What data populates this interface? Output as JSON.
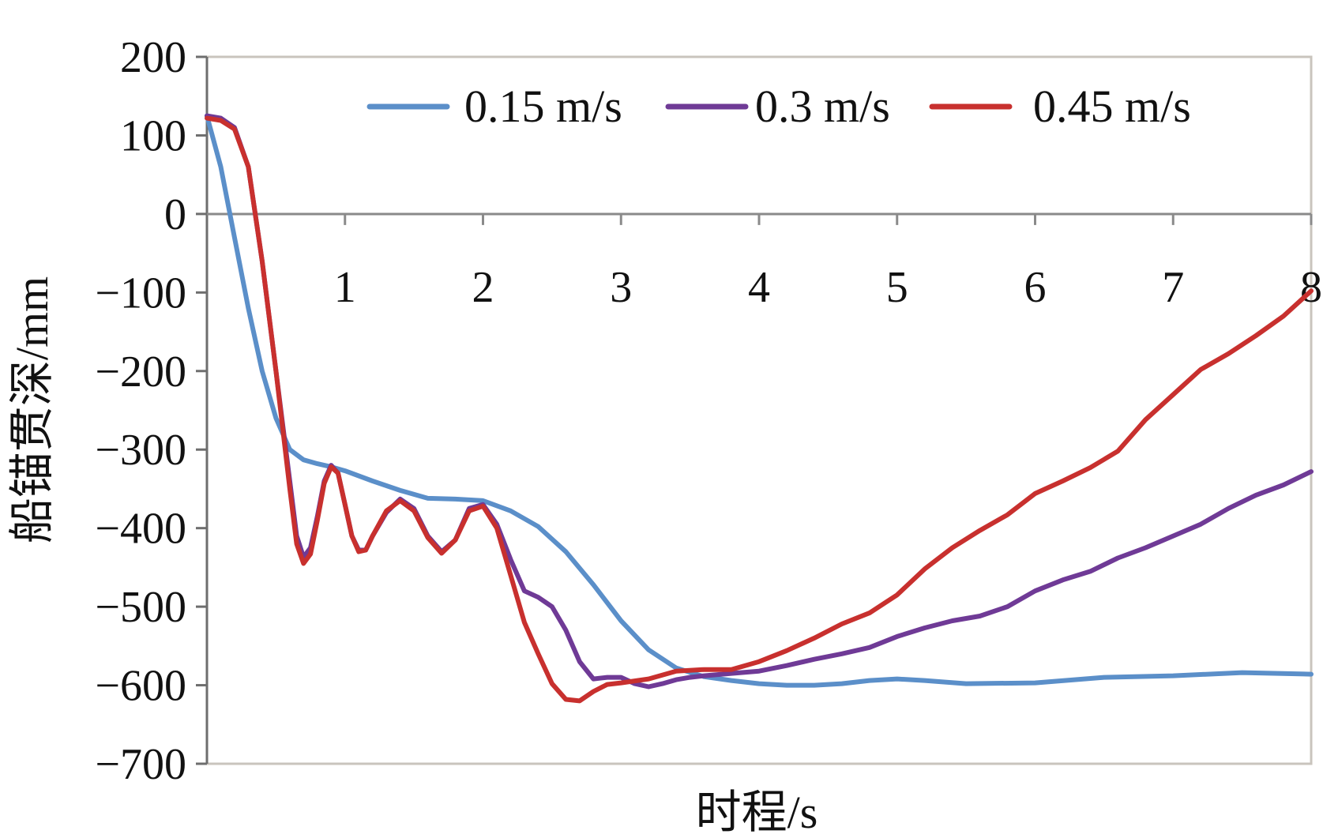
{
  "chart_data": {
    "type": "line",
    "title": "",
    "xlabel": "时程/s",
    "ylabel": "船锚贯深/mm",
    "xlim": [
      0,
      8
    ],
    "ylim": [
      -700,
      200
    ],
    "xticks": [
      "1",
      "2",
      "3",
      "4",
      "5",
      "6",
      "7",
      "8"
    ],
    "yticks": [
      "200",
      "100",
      "0",
      "−100",
      "−200",
      "−300",
      "−400",
      "−500",
      "−600",
      "−700"
    ],
    "grid": false,
    "legend_position": "top",
    "series": [
      {
        "name": "0.15 m/s",
        "color": "#5B8FC9",
        "points": [
          [
            0,
            125
          ],
          [
            0.1,
            60
          ],
          [
            0.2,
            -30
          ],
          [
            0.3,
            -120
          ],
          [
            0.4,
            -200
          ],
          [
            0.5,
            -260
          ],
          [
            0.6,
            -300
          ],
          [
            0.7,
            -313
          ],
          [
            0.8,
            -318
          ],
          [
            0.9,
            -322
          ],
          [
            1.0,
            -327
          ],
          [
            1.2,
            -340
          ],
          [
            1.4,
            -352
          ],
          [
            1.6,
            -362
          ],
          [
            1.8,
            -363
          ],
          [
            2.0,
            -365
          ],
          [
            2.2,
            -378
          ],
          [
            2.4,
            -398
          ],
          [
            2.6,
            -430
          ],
          [
            2.8,
            -472
          ],
          [
            3.0,
            -518
          ],
          [
            3.2,
            -555
          ],
          [
            3.4,
            -578
          ],
          [
            3.6,
            -589
          ],
          [
            3.8,
            -594
          ],
          [
            4.0,
            -598
          ],
          [
            4.2,
            -600
          ],
          [
            4.4,
            -600
          ],
          [
            4.6,
            -598
          ],
          [
            4.8,
            -594
          ],
          [
            5.0,
            -592
          ],
          [
            5.2,
            -594
          ],
          [
            5.5,
            -598
          ],
          [
            6.0,
            -597
          ],
          [
            6.5,
            -590
          ],
          [
            7.0,
            -588
          ],
          [
            7.5,
            -584
          ],
          [
            8.0,
            -586
          ]
        ]
      },
      {
        "name": "0.3 m/s",
        "color": "#6F3A96",
        "points": [
          [
            0,
            125
          ],
          [
            0.1,
            122
          ],
          [
            0.2,
            110
          ],
          [
            0.3,
            60
          ],
          [
            0.4,
            -60
          ],
          [
            0.5,
            -200
          ],
          [
            0.6,
            -340
          ],
          [
            0.65,
            -410
          ],
          [
            0.7,
            -437
          ],
          [
            0.75,
            -425
          ],
          [
            0.8,
            -385
          ],
          [
            0.85,
            -340
          ],
          [
            0.9,
            -320
          ],
          [
            0.95,
            -330
          ],
          [
            1.0,
            -370
          ],
          [
            1.05,
            -410
          ],
          [
            1.1,
            -428
          ],
          [
            1.15,
            -428
          ],
          [
            1.2,
            -410
          ],
          [
            1.3,
            -380
          ],
          [
            1.4,
            -363
          ],
          [
            1.5,
            -375
          ],
          [
            1.6,
            -410
          ],
          [
            1.7,
            -430
          ],
          [
            1.8,
            -415
          ],
          [
            1.9,
            -375
          ],
          [
            2.0,
            -370
          ],
          [
            2.1,
            -395
          ],
          [
            2.2,
            -440
          ],
          [
            2.3,
            -480
          ],
          [
            2.4,
            -488
          ],
          [
            2.5,
            -500
          ],
          [
            2.6,
            -530
          ],
          [
            2.7,
            -570
          ],
          [
            2.8,
            -592
          ],
          [
            2.9,
            -590
          ],
          [
            3.0,
            -590
          ],
          [
            3.1,
            -598
          ],
          [
            3.2,
            -602
          ],
          [
            3.3,
            -598
          ],
          [
            3.4,
            -593
          ],
          [
            3.5,
            -590
          ],
          [
            3.6,
            -588
          ],
          [
            3.8,
            -585
          ],
          [
            4.0,
            -582
          ],
          [
            4.2,
            -575
          ],
          [
            4.4,
            -567
          ],
          [
            4.6,
            -560
          ],
          [
            4.8,
            -552
          ],
          [
            5.0,
            -538
          ],
          [
            5.2,
            -527
          ],
          [
            5.4,
            -518
          ],
          [
            5.6,
            -512
          ],
          [
            5.8,
            -500
          ],
          [
            6.0,
            -480
          ],
          [
            6.2,
            -466
          ],
          [
            6.4,
            -455
          ],
          [
            6.6,
            -438
          ],
          [
            6.8,
            -425
          ],
          [
            7.0,
            -410
          ],
          [
            7.2,
            -395
          ],
          [
            7.4,
            -375
          ],
          [
            7.6,
            -358
          ],
          [
            7.8,
            -345
          ],
          [
            8.0,
            -328
          ]
        ]
      },
      {
        "name": "0.45 m/s",
        "color": "#C8302E",
        "points": [
          [
            0,
            122
          ],
          [
            0.1,
            119
          ],
          [
            0.2,
            108
          ],
          [
            0.3,
            60
          ],
          [
            0.4,
            -60
          ],
          [
            0.5,
            -200
          ],
          [
            0.6,
            -350
          ],
          [
            0.65,
            -420
          ],
          [
            0.7,
            -445
          ],
          [
            0.75,
            -433
          ],
          [
            0.8,
            -390
          ],
          [
            0.85,
            -343
          ],
          [
            0.9,
            -322
          ],
          [
            0.95,
            -330
          ],
          [
            1.0,
            -370
          ],
          [
            1.05,
            -410
          ],
          [
            1.1,
            -430
          ],
          [
            1.15,
            -428
          ],
          [
            1.2,
            -410
          ],
          [
            1.3,
            -378
          ],
          [
            1.4,
            -365
          ],
          [
            1.5,
            -378
          ],
          [
            1.6,
            -412
          ],
          [
            1.7,
            -432
          ],
          [
            1.8,
            -415
          ],
          [
            1.9,
            -378
          ],
          [
            2.0,
            -372
          ],
          [
            2.1,
            -400
          ],
          [
            2.2,
            -460
          ],
          [
            2.3,
            -520
          ],
          [
            2.4,
            -560
          ],
          [
            2.5,
            -598
          ],
          [
            2.6,
            -618
          ],
          [
            2.7,
            -620
          ],
          [
            2.8,
            -608
          ],
          [
            2.9,
            -599
          ],
          [
            3.0,
            -597
          ],
          [
            3.2,
            -592
          ],
          [
            3.4,
            -582
          ],
          [
            3.6,
            -580
          ],
          [
            3.8,
            -580
          ],
          [
            4.0,
            -570
          ],
          [
            4.2,
            -556
          ],
          [
            4.4,
            -540
          ],
          [
            4.6,
            -522
          ],
          [
            4.8,
            -508
          ],
          [
            5.0,
            -485
          ],
          [
            5.2,
            -452
          ],
          [
            5.4,
            -425
          ],
          [
            5.6,
            -403
          ],
          [
            5.8,
            -383
          ],
          [
            6.0,
            -356
          ],
          [
            6.2,
            -340
          ],
          [
            6.4,
            -323
          ],
          [
            6.6,
            -302
          ],
          [
            6.8,
            -262
          ],
          [
            7.0,
            -230
          ],
          [
            7.2,
            -198
          ],
          [
            7.4,
            -178
          ],
          [
            7.6,
            -155
          ],
          [
            7.8,
            -130
          ],
          [
            8.0,
            -98
          ]
        ]
      }
    ]
  }
}
